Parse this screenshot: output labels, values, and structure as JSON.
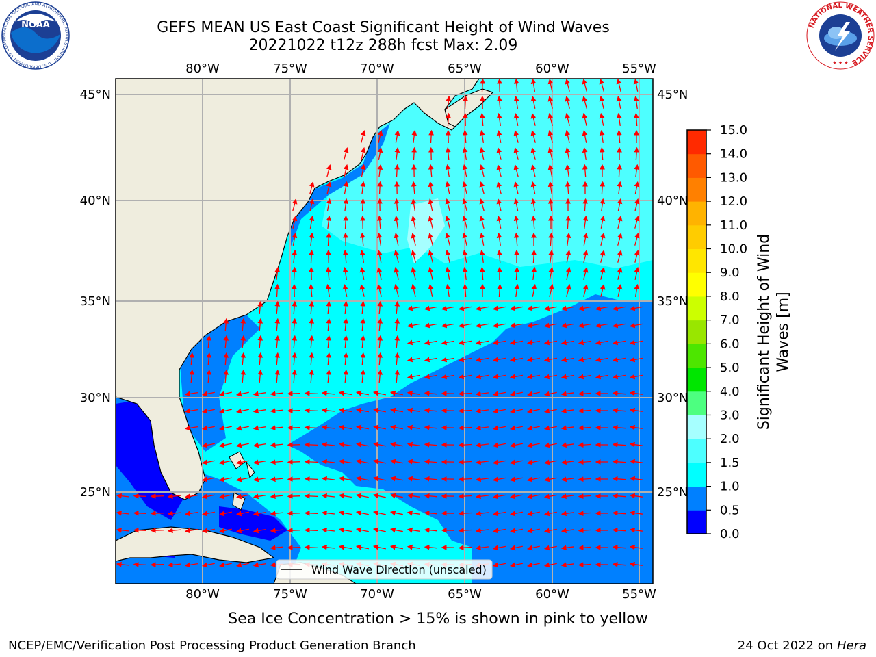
{
  "title": {
    "line1": "GEFS MEAN US East Coast Significant Height of Wind Waves",
    "line2": "20221022 t12z 288h fcst   Max: 2.09"
  },
  "map": {
    "lon_ticks": [
      "80°W",
      "75°W",
      "70°W",
      "65°W",
      "60°W",
      "55°W"
    ],
    "lat_ticks": [
      "45°N",
      "40°N",
      "35°N",
      "30°N",
      "25°N"
    ],
    "legend_label": "Wind Wave Direction (unscaled)",
    "colors": {
      "land": "#efedde",
      "band_0_05": "#0000ff",
      "band_05_10": "#0080ff",
      "band_10_15": "#00ffff",
      "band_15_20": "#4dffff",
      "band_20_25": "#a6ffff",
      "arrow": "#ff0000"
    }
  },
  "colorbar": {
    "label_line1": "Significant Height of Wind",
    "label_line2": "Waves [m]",
    "ticks": [
      "0.0",
      "0.5",
      "1.0",
      "1.5",
      "2.0",
      "3.0",
      "4.0",
      "5.0",
      "6.0",
      "7.0",
      "8.0",
      "9.0",
      "10.0",
      "11.0",
      "12.0",
      "13.0",
      "14.0",
      "15.0"
    ],
    "colors": [
      "#0000ff",
      "#0080ff",
      "#00ffff",
      "#4dffff",
      "#a6ffff",
      "#4dff80",
      "#00e600",
      "#4de600",
      "#99e600",
      "#ccff00",
      "#ffff00",
      "#ffe600",
      "#ffcc00",
      "#ffb300",
      "#ff8000",
      "#ff5a00",
      "#ff2a00",
      "#ff0000"
    ]
  },
  "footer": {
    "sea_ice_note": "Sea Ice Concentration > 15% is shown in pink to yellow",
    "credit_left": "NCEP/EMC/Verification Post Processing Product Generation Branch",
    "credit_date": "24 Oct 2022 on ",
    "credit_host": "Hera"
  },
  "logos": {
    "noaa_text": "NOAA",
    "noaa_ring_text": "NATIONAL OCEANIC AND ATMOSPHERIC ADMINISTRATION · U.S. DEPARTMENT OF COMMERCE",
    "nws_ring_text": "NATIONAL WEATHER SERVICE"
  }
}
